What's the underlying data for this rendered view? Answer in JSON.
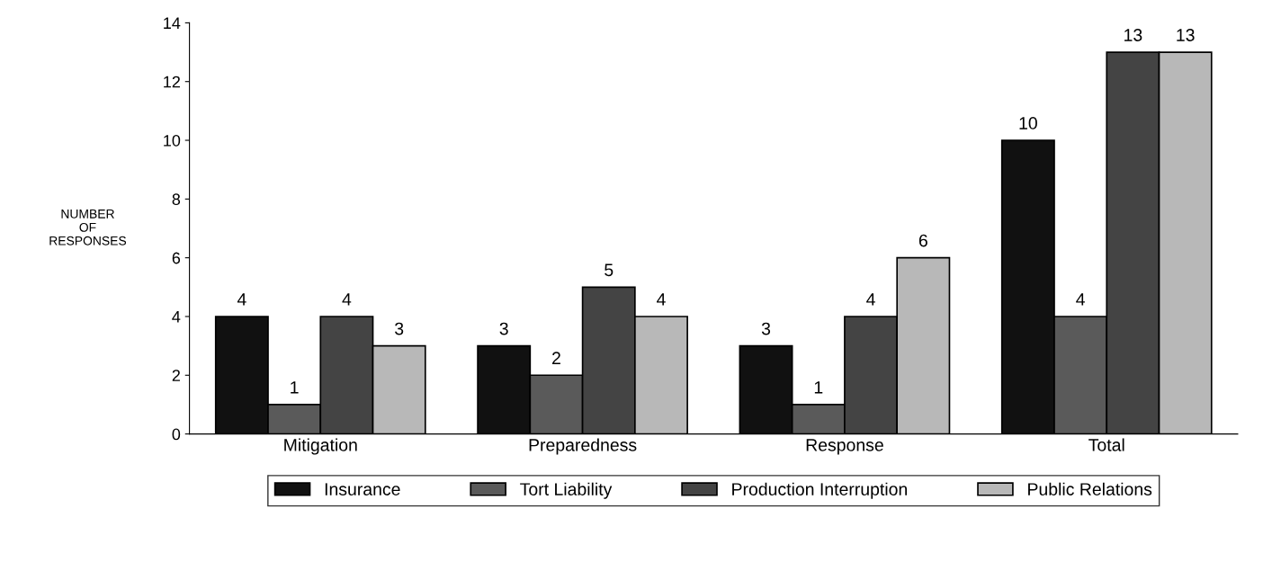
{
  "chart_data": {
    "type": "bar",
    "ylabel": "NUMBER\nOF\nRESPONSES",
    "categories": [
      "Mitigation",
      "Preparedness",
      "Response",
      "Total"
    ],
    "series": [
      {
        "name": "Insurance",
        "color": "#111111",
        "values": [
          4,
          3,
          3,
          10
        ]
      },
      {
        "name": "Tort Liability",
        "color": "#5a5a5a",
        "values": [
          1,
          2,
          1,
          4
        ]
      },
      {
        "name": "Production Interruption",
        "color": "#444444",
        "values": [
          4,
          5,
          4,
          13
        ]
      },
      {
        "name": "Public Relations",
        "color": "#b8b8b8",
        "values": [
          3,
          4,
          6,
          13
        ]
      }
    ],
    "ylim": [
      0,
      14
    ],
    "yticks": [
      0,
      2,
      4,
      6,
      8,
      10,
      12,
      14
    ],
    "data_labels": true,
    "legend": "bottom",
    "grid": false
  }
}
